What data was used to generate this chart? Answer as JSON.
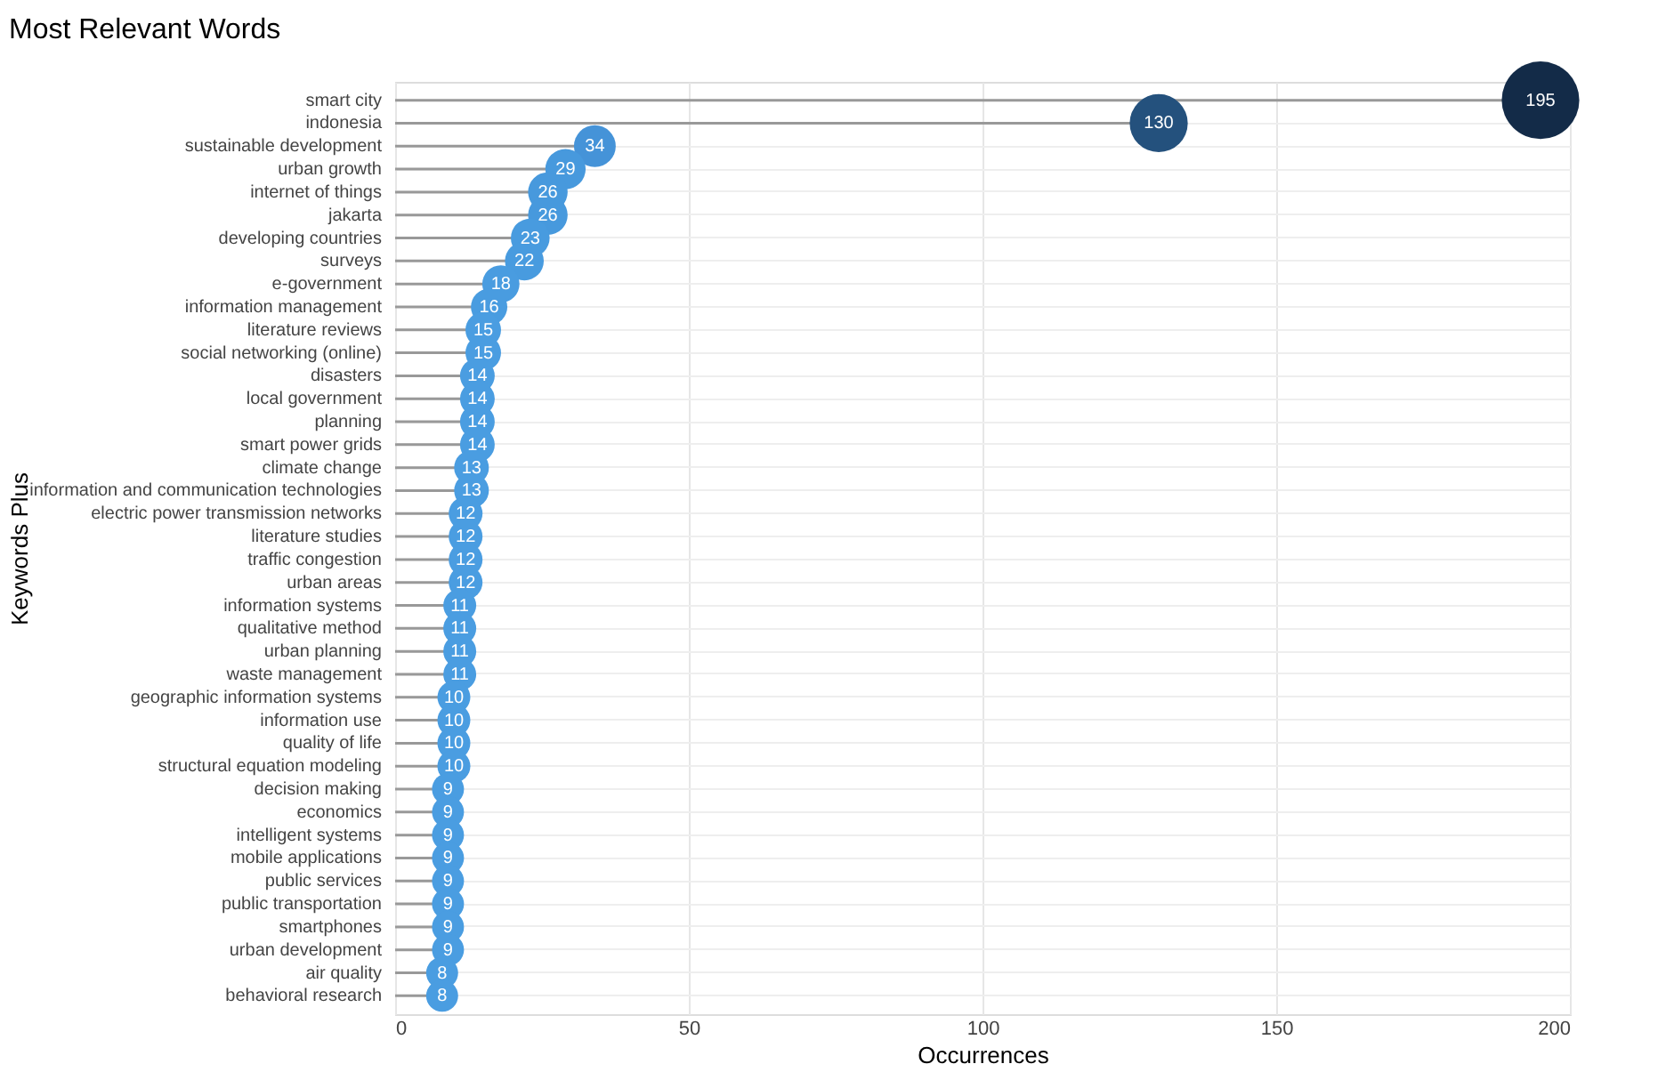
{
  "chart_data": {
    "type": "lollipop",
    "orientation": "horizontal",
    "title": "Most Relevant Words",
    "xlabel": "Occurrences",
    "ylabel": "Keywords Plus",
    "categories": [
      "smart city",
      "indonesia",
      "sustainable development",
      "urban growth",
      "internet of things",
      "jakarta",
      "developing countries",
      "surveys",
      "e-government",
      "information management",
      "literature reviews",
      "social networking (online)",
      "disasters",
      "local government",
      "planning",
      "smart power grids",
      "climate change",
      "information and communication technologies",
      "electric power transmission networks",
      "literature studies",
      "traffic congestion",
      "urban areas",
      "information systems",
      "qualitative method",
      "urban planning",
      "waste management",
      "geographic information systems",
      "information use",
      "quality of life",
      "structural equation modeling",
      "decision making",
      "economics",
      "intelligent systems",
      "mobile applications",
      "public services",
      "public transportation",
      "smartphones",
      "urban development",
      "air quality",
      "behavioral research"
    ],
    "values": [
      195,
      130,
      34,
      29,
      26,
      26,
      23,
      22,
      18,
      16,
      15,
      15,
      14,
      14,
      14,
      14,
      13,
      13,
      12,
      12,
      12,
      12,
      11,
      11,
      11,
      11,
      10,
      10,
      10,
      10,
      9,
      9,
      9,
      9,
      9,
      9,
      9,
      9,
      8,
      8
    ],
    "sizes": [
      1,
      0.56,
      0.29,
      0.27,
      0.26,
      0.26,
      0.25,
      0.25,
      0.23,
      0.22,
      0.21,
      0.21,
      0.2,
      0.2,
      0.2,
      0.2,
      0.2,
      0.2,
      0.19,
      0.19,
      0.19,
      0.19,
      0.18,
      0.18,
      0.18,
      0.18,
      0.18,
      0.18,
      0.18,
      0.18,
      0.17,
      0.17,
      0.17,
      0.17,
      0.17,
      0.17,
      0.17,
      0.17,
      0.17,
      0.17
    ],
    "colors": [
      "#132b48",
      "#24517d",
      "#4593d8",
      "#4799dd",
      "#4799dd",
      "#4799dd",
      "#489bdf",
      "#489bdf",
      "#499ce0",
      "#499ce0",
      "#4a9de1",
      "#4a9de1",
      "#4a9de1",
      "#4a9de1",
      "#4a9de1",
      "#4a9de1",
      "#4a9de1",
      "#4a9de1",
      "#4a9de1",
      "#4a9de1",
      "#4a9de1",
      "#4a9de1",
      "#4a9de1",
      "#4a9de1",
      "#4a9de1",
      "#4a9de1",
      "#4a9de1",
      "#4a9de1",
      "#4a9de1",
      "#4a9de1",
      "#4a9de1",
      "#4a9de1",
      "#4a9de1",
      "#4a9de1",
      "#4a9de1",
      "#4a9de1",
      "#4a9de1",
      "#4a9de1",
      "#4a9de1",
      "#4a9de1"
    ],
    "xlim": [
      0,
      200
    ],
    "xticks": [
      0,
      50,
      100,
      150,
      200
    ],
    "grid": true,
    "data_labels": true,
    "legend": false
  }
}
